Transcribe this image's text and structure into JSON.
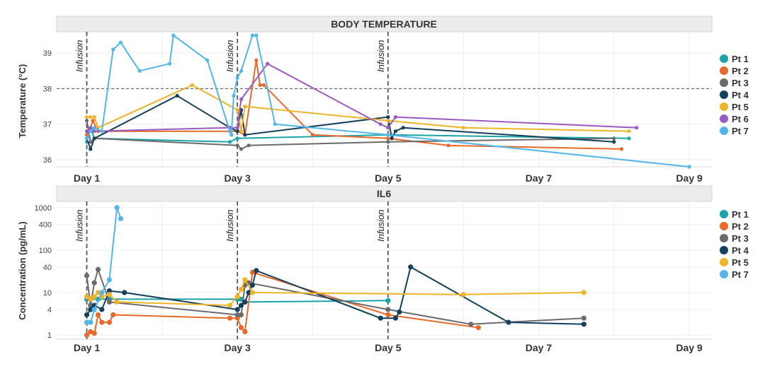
{
  "chart_data": [
    {
      "type": "line",
      "title": "BODY TEMPERATURE",
      "xlabel": "",
      "ylabel": "Temperature (°C)",
      "ylim": [
        35.8,
        39.6
      ],
      "y_ticks": [
        36,
        37,
        38,
        39
      ],
      "x_ticks": [
        {
          "value": 1,
          "label": "Day 1"
        },
        {
          "value": 3,
          "label": "Day 3"
        },
        {
          "value": 5,
          "label": "Day 5"
        },
        {
          "value": 7,
          "label": "Day 7"
        },
        {
          "value": 9,
          "label": "Day 9"
        }
      ],
      "xlim": [
        0.6,
        9.3
      ],
      "reference_line": {
        "y": 38
      },
      "infusions": [
        {
          "day": 1,
          "label": "Infusion"
        },
        {
          "day": 3,
          "label": "Infusion"
        },
        {
          "day": 5,
          "label": "Infusion"
        }
      ],
      "series": [
        {
          "name": "Pt 1",
          "color": "#1aa3a8",
          "points": [
            [
              1.0,
              36.5
            ],
            [
              1.05,
              36.9
            ],
            [
              1.1,
              36.6
            ],
            [
              2.9,
              36.5
            ],
            [
              3.0,
              36.6
            ],
            [
              5.0,
              36.7
            ],
            [
              8.2,
              36.6
            ]
          ]
        },
        {
          "name": "Pt 2",
          "color": "#e8692a",
          "points": [
            [
              1.0,
              36.7
            ],
            [
              1.05,
              36.9
            ],
            [
              1.08,
              37.1
            ],
            [
              1.15,
              36.8
            ],
            [
              3.0,
              36.8
            ],
            [
              3.1,
              36.7
            ],
            [
              3.25,
              38.8
            ],
            [
              3.3,
              38.1
            ],
            [
              3.35,
              38.1
            ],
            [
              4.0,
              36.7
            ],
            [
              5.0,
              36.6
            ],
            [
              5.8,
              36.4
            ],
            [
              8.1,
              36.3
            ]
          ]
        },
        {
          "name": "Pt 3",
          "color": "#6b6b6b",
          "points": [
            [
              1.0,
              37.1
            ],
            [
              1.05,
              36.5
            ],
            [
              1.1,
              36.6
            ],
            [
              3.0,
              36.4
            ],
            [
              3.05,
              36.3
            ],
            [
              3.15,
              36.4
            ],
            [
              5.0,
              36.5
            ],
            [
              8.0,
              36.6
            ]
          ]
        },
        {
          "name": "Pt 4",
          "color": "#14405e",
          "points": [
            [
              1.0,
              36.6
            ],
            [
              1.05,
              36.3
            ],
            [
              1.1,
              36.6
            ],
            [
              2.2,
              37.8
            ],
            [
              2.9,
              36.9
            ],
            [
              3.0,
              36.8
            ],
            [
              3.05,
              37.4
            ],
            [
              3.1,
              36.7
            ],
            [
              5.0,
              37.2
            ],
            [
              5.05,
              36.6
            ],
            [
              5.1,
              36.8
            ],
            [
              5.2,
              36.9
            ],
            [
              8.0,
              36.5
            ]
          ]
        },
        {
          "name": "Pt 5",
          "color": "#f0b429",
          "points": [
            [
              1.0,
              37.2
            ],
            [
              1.05,
              37.2
            ],
            [
              1.1,
              37.2
            ],
            [
              1.15,
              36.9
            ],
            [
              2.4,
              38.1
            ],
            [
              3.0,
              37.4
            ],
            [
              3.05,
              36.8
            ],
            [
              3.1,
              37.5
            ],
            [
              5.0,
              37.1
            ],
            [
              6.0,
              36.9
            ],
            [
              8.2,
              36.8
            ]
          ]
        },
        {
          "name": "Pt 6",
          "color": "#9b59c4",
          "points": [
            [
              1.0,
              36.8
            ],
            [
              1.05,
              36.9
            ],
            [
              1.1,
              36.8
            ],
            [
              2.9,
              36.9
            ],
            [
              3.0,
              36.9
            ],
            [
              3.05,
              37.7
            ],
            [
              3.4,
              38.7
            ],
            [
              4.9,
              37.0
            ],
            [
              5.0,
              36.9
            ],
            [
              5.1,
              37.2
            ],
            [
              8.3,
              36.9
            ]
          ]
        },
        {
          "name": "Pt 7",
          "color": "#52b6ea",
          "points": [
            [
              1.0,
              36.6
            ],
            [
              1.05,
              36.8
            ],
            [
              1.1,
              36.9
            ],
            [
              1.2,
              36.8
            ],
            [
              1.35,
              39.1
            ],
            [
              1.45,
              39.3
            ],
            [
              1.7,
              38.5
            ],
            [
              2.1,
              38.7
            ],
            [
              2.15,
              39.5
            ],
            [
              2.6,
              38.8
            ],
            [
              2.9,
              36.8
            ],
            [
              2.92,
              36.7
            ],
            [
              2.95,
              37.8
            ],
            [
              3.0,
              38.3
            ],
            [
              3.05,
              38.5
            ],
            [
              3.2,
              39.5
            ],
            [
              3.25,
              39.5
            ],
            [
              3.5,
              37.0
            ],
            [
              5.0,
              36.7
            ],
            [
              9.0,
              35.8
            ]
          ]
        }
      ]
    },
    {
      "type": "line",
      "title": "IL6",
      "xlabel": "",
      "ylabel": "Concentration (pg/mL)",
      "yscale": "log",
      "ylim": [
        0.8,
        1400
      ],
      "y_ticks": [
        {
          "value": 1,
          "label": "1"
        },
        {
          "value": 4,
          "label": "4"
        },
        {
          "value": 10,
          "label": "10"
        },
        {
          "value": 40,
          "label": "40"
        },
        {
          "value": 100,
          "label": "100"
        },
        {
          "value": 400,
          "label": "400"
        },
        {
          "value": 1000,
          "label": "1000"
        }
      ],
      "x_ticks": [
        {
          "value": 1,
          "label": "Day 1"
        },
        {
          "value": 3,
          "label": "Day 3"
        },
        {
          "value": 5,
          "label": "Day 5"
        },
        {
          "value": 7,
          "label": "Day 7"
        },
        {
          "value": 9,
          "label": "Day 9"
        }
      ],
      "xlim": [
        0.6,
        9.3
      ],
      "infusions": [
        {
          "day": 1,
          "label": "Infusion"
        },
        {
          "day": 3,
          "label": "Infusion"
        },
        {
          "day": 5,
          "label": "Infusion"
        }
      ],
      "series": [
        {
          "name": "Pt 1",
          "color": "#1aa3a8",
          "points": [
            [
              1.0,
              7
            ],
            [
              1.05,
              7
            ],
            [
              1.15,
              7
            ],
            [
              1.3,
              7
            ],
            [
              3.0,
              7
            ],
            [
              3.05,
              7
            ],
            [
              3.1,
              6
            ],
            [
              5.0,
              6.5
            ]
          ]
        },
        {
          "name": "Pt 2",
          "color": "#e8692a",
          "points": [
            [
              1.0,
              1
            ],
            [
              1.05,
              1.2
            ],
            [
              1.1,
              1.1
            ],
            [
              1.15,
              3
            ],
            [
              1.2,
              2
            ],
            [
              1.3,
              2
            ],
            [
              1.35,
              3
            ],
            [
              2.9,
              2.5
            ],
            [
              3.0,
              2.5
            ],
            [
              3.05,
              1.5
            ],
            [
              3.1,
              1.2
            ],
            [
              3.2,
              30
            ],
            [
              5.0,
              3
            ],
            [
              6.2,
              1.5
            ]
          ]
        },
        {
          "name": "Pt 3",
          "color": "#6b6b6b",
          "points": [
            [
              1.0,
              25
            ],
            [
              1.05,
              5
            ],
            [
              1.1,
              17
            ],
            [
              1.15,
              35
            ],
            [
              1.3,
              6
            ],
            [
              3.0,
              3
            ],
            [
              3.05,
              3
            ],
            [
              3.1,
              15
            ],
            [
              3.15,
              17
            ],
            [
              5.0,
              4
            ],
            [
              6.1,
              1.8
            ],
            [
              7.6,
              2.5
            ]
          ]
        },
        {
          "name": "Pt 4",
          "color": "#14405e",
          "points": [
            [
              1.0,
              3
            ],
            [
              1.05,
              4
            ],
            [
              1.1,
              5
            ],
            [
              1.2,
              4
            ],
            [
              1.3,
              11
            ],
            [
              1.5,
              10
            ],
            [
              3.0,
              4
            ],
            [
              3.05,
              5
            ],
            [
              3.1,
              6
            ],
            [
              3.15,
              10
            ],
            [
              3.2,
              15
            ],
            [
              3.25,
              33
            ],
            [
              4.9,
              2.5
            ],
            [
              5.1,
              2.5
            ],
            [
              5.15,
              3.5
            ],
            [
              5.3,
              40
            ],
            [
              6.6,
              2
            ],
            [
              7.6,
              1.8
            ]
          ]
        },
        {
          "name": "Pt 5",
          "color": "#f0b429",
          "points": [
            [
              1.0,
              8
            ],
            [
              1.05,
              7
            ],
            [
              1.1,
              8
            ],
            [
              1.15,
              10
            ],
            [
              1.2,
              8
            ],
            [
              1.3,
              9
            ],
            [
              1.4,
              6
            ],
            [
              2.9,
              5
            ],
            [
              3.0,
              8
            ],
            [
              3.05,
              12
            ],
            [
              3.1,
              20
            ],
            [
              3.2,
              10
            ],
            [
              6.0,
              9
            ],
            [
              7.6,
              10
            ]
          ]
        },
        {
          "name": "Pt 7",
          "color": "#52b6ea",
          "points": [
            [
              1.0,
              2
            ],
            [
              1.05,
              2
            ],
            [
              1.1,
              4
            ],
            [
              1.2,
              10
            ],
            [
              1.3,
              20
            ],
            [
              1.4,
              1000
            ],
            [
              1.45,
              550
            ]
          ]
        }
      ]
    }
  ],
  "legend": {
    "items": [
      {
        "label": "Pt 1",
        "color": "#1aa3a8"
      },
      {
        "label": "Pt 2",
        "color": "#e8692a"
      },
      {
        "label": "Pt 3",
        "color": "#6b6b6b"
      },
      {
        "label": "Pt 4",
        "color": "#14405e"
      },
      {
        "label": "Pt 5",
        "color": "#f0b429"
      },
      {
        "label": "Pt 6",
        "color": "#9b59c4"
      },
      {
        "label": "Pt 7",
        "color": "#52b6ea"
      }
    ]
  },
  "legend_il6": {
    "items": [
      {
        "label": "Pt 1",
        "color": "#1aa3a8"
      },
      {
        "label": "Pt 2",
        "color": "#e8692a"
      },
      {
        "label": "Pt 3",
        "color": "#6b6b6b"
      },
      {
        "label": "Pt 4",
        "color": "#14405e"
      },
      {
        "label": "Pt 5",
        "color": "#f0b429"
      },
      {
        "label": "Pt 7",
        "color": "#52b6ea"
      }
    ]
  }
}
